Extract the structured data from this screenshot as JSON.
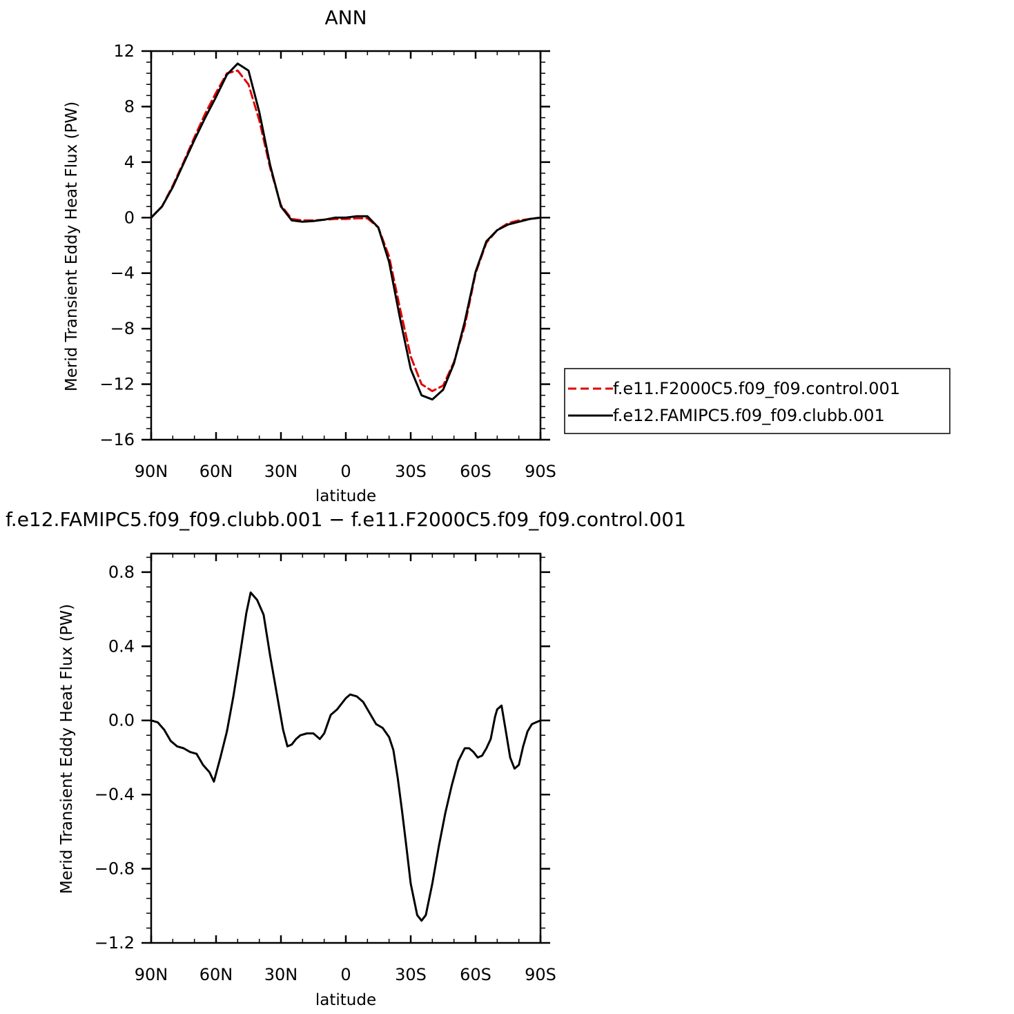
{
  "chart_data": [
    {
      "type": "line",
      "title": "ANN",
      "xlabel": "latitude",
      "ylabel": "Merid Transient Eddy Heat Flux (PW)",
      "xlim": [
        90,
        -90
      ],
      "ylim": [
        -16,
        12
      ],
      "x_ticks": [
        {
          "value": 90,
          "label": "90N"
        },
        {
          "value": 60,
          "label": "60N"
        },
        {
          "value": 30,
          "label": "30N"
        },
        {
          "value": 0,
          "label": "0"
        },
        {
          "value": -30,
          "label": "30S"
        },
        {
          "value": -60,
          "label": "60S"
        },
        {
          "value": -90,
          "label": "90S"
        }
      ],
      "y_ticks": [
        {
          "value": 12,
          "label": "12"
        },
        {
          "value": 8,
          "label": "8"
        },
        {
          "value": 4,
          "label": "4"
        },
        {
          "value": 0,
          "label": "0"
        },
        {
          "value": -4,
          "label": "−4"
        },
        {
          "value": -8,
          "label": "−8"
        },
        {
          "value": -12,
          "label": "−12"
        },
        {
          "value": -16,
          "label": "−16"
        }
      ],
      "legend": "outside-right",
      "series": [
        {
          "name": "f.e11.F2000C5.f09_f09.control.001",
          "color": "#e00000",
          "style": "dashed",
          "x": [
            90,
            85,
            80,
            75,
            70,
            65,
            60,
            55,
            50,
            45,
            40,
            35,
            30,
            25,
            20,
            15,
            10,
            5,
            0,
            -5,
            -10,
            -15,
            -20,
            -25,
            -30,
            -35,
            -40,
            -45,
            -50,
            -55,
            -60,
            -65,
            -70,
            -75,
            -80,
            -85,
            -90
          ],
          "values": [
            0,
            0.8,
            2.3,
            4.0,
            5.8,
            7.5,
            9.0,
            10.4,
            10.6,
            9.6,
            7.0,
            3.6,
            0.9,
            -0.1,
            -0.2,
            -0.2,
            -0.15,
            -0.1,
            -0.1,
            -0.05,
            -0.05,
            -0.7,
            -2.8,
            -6.5,
            -10.0,
            -12.0,
            -12.5,
            -12.1,
            -10.4,
            -7.8,
            -4.0,
            -1.8,
            -0.9,
            -0.4,
            -0.2,
            -0.1,
            0
          ]
        },
        {
          "name": "f.e12.FAMIPC5.f09_f09.clubb.001",
          "color": "#000000",
          "style": "solid",
          "x": [
            90,
            85,
            80,
            75,
            70,
            65,
            60,
            55,
            50,
            45,
            40,
            35,
            30,
            25,
            20,
            15,
            10,
            5,
            0,
            -5,
            -10,
            -15,
            -20,
            -25,
            -30,
            -35,
            -40,
            -45,
            -50,
            -55,
            -60,
            -65,
            -70,
            -75,
            -80,
            -85,
            -90
          ],
          "values": [
            0,
            0.8,
            2.2,
            3.9,
            5.6,
            7.2,
            8.7,
            10.3,
            11.1,
            10.6,
            7.6,
            3.8,
            0.8,
            -0.2,
            -0.3,
            -0.25,
            -0.15,
            0,
            0,
            0.1,
            0.1,
            -0.7,
            -3.2,
            -7.2,
            -10.9,
            -12.8,
            -13.1,
            -12.4,
            -10.5,
            -7.5,
            -3.9,
            -1.7,
            -0.9,
            -0.5,
            -0.3,
            -0.1,
            0
          ]
        }
      ]
    },
    {
      "type": "line",
      "title": "f.e12.FAMIPC5.f09_f09.clubb.001 − f.e11.F2000C5.f09_f09.control.001",
      "xlabel": "latitude",
      "ylabel": "Merid Transient Eddy Heat Flux (PW)",
      "xlim": [
        90,
        -90
      ],
      "ylim": [
        -1.2,
        0.9
      ],
      "x_ticks": [
        {
          "value": 90,
          "label": "90N"
        },
        {
          "value": 60,
          "label": "60N"
        },
        {
          "value": 30,
          "label": "30N"
        },
        {
          "value": 0,
          "label": "0"
        },
        {
          "value": -30,
          "label": "30S"
        },
        {
          "value": -60,
          "label": "60S"
        },
        {
          "value": -90,
          "label": "90S"
        }
      ],
      "y_ticks": [
        {
          "value": 0.8,
          "label": "0.8"
        },
        {
          "value": 0.4,
          "label": "0.4"
        },
        {
          "value": 0.0,
          "label": "0.0"
        },
        {
          "value": -0.4,
          "label": "−0.4"
        },
        {
          "value": -0.8,
          "label": "−0.8"
        },
        {
          "value": -1.2,
          "label": "−1.2"
        }
      ],
      "series": [
        {
          "color": "#000000",
          "style": "solid",
          "x": [
            90,
            87,
            84,
            81,
            78,
            75,
            72,
            69,
            66,
            63,
            61,
            58,
            55,
            52,
            49,
            46,
            44,
            41,
            38,
            35,
            32,
            29,
            27,
            25,
            23,
            21,
            18,
            15,
            12,
            10,
            7,
            4,
            0,
            -2,
            -5,
            -8,
            -11,
            -14,
            -17,
            -20,
            -22,
            -24,
            -26,
            -28,
            -30,
            -33,
            -35,
            -37,
            -40,
            -43,
            -46,
            -49,
            -52,
            -55,
            -57,
            -59,
            -61,
            -63,
            -65,
            -67,
            -69,
            -70,
            -72,
            -74,
            -76,
            -78,
            -80,
            -82,
            -84,
            -86,
            -88,
            -90
          ],
          "values": [
            0,
            -0.01,
            -0.05,
            -0.11,
            -0.14,
            -0.15,
            -0.17,
            -0.18,
            -0.24,
            -0.28,
            -0.33,
            -0.2,
            -0.06,
            0.13,
            0.35,
            0.58,
            0.69,
            0.65,
            0.57,
            0.35,
            0.15,
            -0.05,
            -0.14,
            -0.13,
            -0.1,
            -0.08,
            -0.07,
            -0.07,
            -0.1,
            -0.07,
            0.03,
            0.06,
            0.12,
            0.14,
            0.13,
            0.1,
            0.04,
            -0.02,
            -0.04,
            -0.09,
            -0.16,
            -0.31,
            -0.49,
            -0.68,
            -0.88,
            -1.05,
            -1.08,
            -1.05,
            -0.88,
            -0.68,
            -0.5,
            -0.35,
            -0.22,
            -0.15,
            -0.15,
            -0.17,
            -0.2,
            -0.19,
            -0.15,
            -0.1,
            0.02,
            0.06,
            0.08,
            -0.06,
            -0.2,
            -0.26,
            -0.24,
            -0.14,
            -0.06,
            -0.02,
            -0.01,
            0
          ]
        }
      ]
    }
  ]
}
